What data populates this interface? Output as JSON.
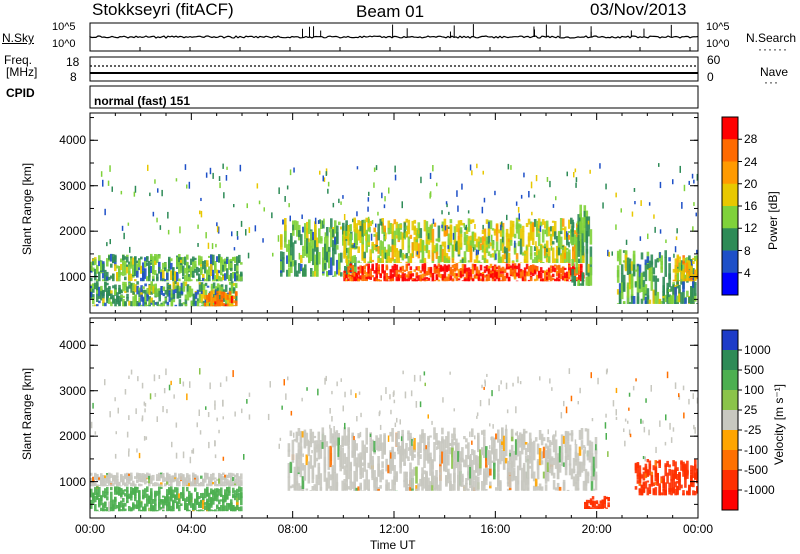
{
  "header": {
    "station": "Stokkseyri (fitACF)",
    "beam": "Beam 01",
    "date": "03/Nov/2013"
  },
  "side_labels": {
    "nsky": "N.Sky",
    "nsky_ticks": [
      "10^5",
      "10^0"
    ],
    "nsearch": "N.Search",
    "nsearch_ticks": [
      "10^5",
      "10^0"
    ],
    "freq": "Freq.",
    "freq_unit": "[MHz]",
    "freq_ticks": [
      "18",
      "8"
    ],
    "nave": "Nave",
    "nave_ticks": [
      "60",
      "0"
    ],
    "cpid": "CPID",
    "cpid_text": "normal (fast) 151"
  },
  "chart_data": [
    {
      "type": "heatmap",
      "name": "power-panel",
      "ylabel": "Slant Range [km]",
      "xlabel": "",
      "xticks": [
        "00:00",
        "04:00",
        "08:00",
        "12:00",
        "16:00",
        "20:00",
        "00:00"
      ],
      "xlim_hours": [
        0,
        24
      ],
      "yticks": [
        1000,
        2000,
        3000,
        4000
      ],
      "ylim": [
        200,
        4600
      ],
      "colorbar": {
        "label": "Power [dB]",
        "ticks": [
          "28",
          "24",
          "20",
          "16",
          "12",
          "8",
          "4"
        ],
        "colors": [
          "#ff0000",
          "#ff6a00",
          "#ff9a00",
          "#e8c800",
          "#7fd23a",
          "#2e8b57",
          "#1e50c8",
          "#0000ff"
        ]
      },
      "regions": [
        {
          "t0": 0.0,
          "t1": 6.0,
          "r0": 900,
          "r1": 1500,
          "level": 12
        },
        {
          "t0": 0.0,
          "t1": 5.8,
          "r0": 350,
          "r1": 900,
          "level": 12
        },
        {
          "t0": 4.5,
          "t1": 5.8,
          "r0": 350,
          "r1": 700,
          "level": 24
        },
        {
          "t0": 7.5,
          "t1": 10.5,
          "r0": 1000,
          "r1": 2300,
          "level": 12
        },
        {
          "t0": 10.0,
          "t1": 19.5,
          "r0": 900,
          "r1": 1300,
          "level": 28
        },
        {
          "t0": 10.0,
          "t1": 19.5,
          "r0": 1300,
          "r1": 2300,
          "level": 16
        },
        {
          "t0": 19.0,
          "t1": 19.8,
          "r0": 800,
          "r1": 2600,
          "level": 12
        },
        {
          "t0": 20.8,
          "t1": 24.0,
          "r0": 400,
          "r1": 1600,
          "level": 12
        },
        {
          "t0": 23.0,
          "t1": 24.0,
          "r0": 900,
          "r1": 1500,
          "level": 20
        }
      ]
    },
    {
      "type": "heatmap",
      "name": "velocity-panel",
      "ylabel": "Slant Range [km]",
      "xlabel": "Time UT",
      "xticks": [
        "00:00",
        "04:00",
        "08:00",
        "12:00",
        "16:00",
        "20:00",
        "00:00"
      ],
      "xlim_hours": [
        0,
        24
      ],
      "yticks": [
        1000,
        2000,
        3000,
        4000
      ],
      "ylim": [
        200,
        4600
      ],
      "colorbar": {
        "label": "Velocity [m s⁻¹]",
        "ticks": [
          "1000",
          "500",
          "100",
          "25",
          "-25",
          "-100",
          "-500",
          "-1000"
        ],
        "colors": [
          "#1e3cc8",
          "#2e8b57",
          "#4caf50",
          "#8bc34a",
          "#c8c8c0",
          "#ffa500",
          "#ff7000",
          "#ff3000",
          "#ff0000"
        ]
      },
      "regions": [
        {
          "t0": 0.0,
          "t1": 6.0,
          "r0": 900,
          "r1": 1200,
          "level": 25
        },
        {
          "t0": 0.0,
          "t1": 6.0,
          "r0": 350,
          "r1": 900,
          "level": 100
        },
        {
          "t0": 7.8,
          "t1": 20.0,
          "r0": 800,
          "r1": 2200,
          "level": 0
        },
        {
          "t0": 19.5,
          "t1": 20.5,
          "r0": 400,
          "r1": 700,
          "level": -500
        },
        {
          "t0": 21.5,
          "t1": 24.0,
          "r0": 700,
          "r1": 1500,
          "level": -500
        }
      ]
    }
  ]
}
